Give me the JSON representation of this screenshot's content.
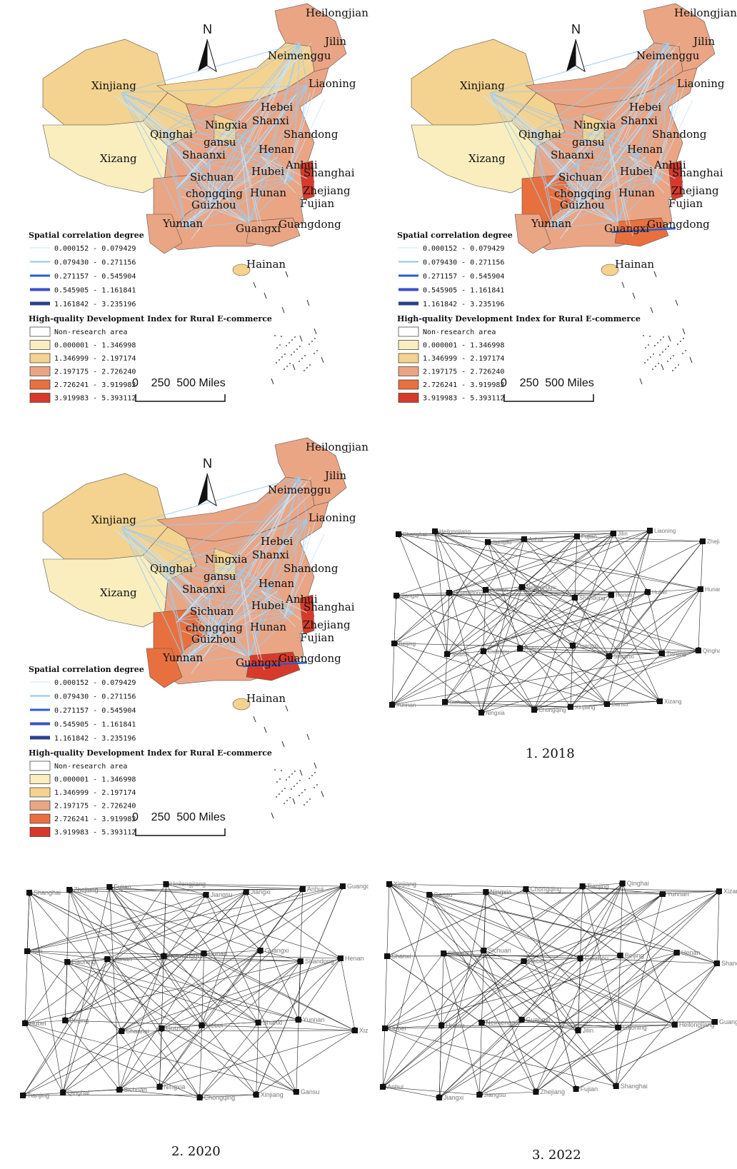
{
  "maps": [
    {
      "id": "map_top_left",
      "north_label": "N",
      "provinces": [
        "Heilongjiang",
        "Jilin",
        "Neimenggu",
        "Liaoning",
        "Xinjiang",
        "Hebei",
        "Shanxi",
        "Qinghai",
        "Ningxia",
        "Shandong",
        "gansu",
        "Xizang",
        "Shaanxi",
        "Henan",
        "Anhui",
        "Sichuan",
        "Hubei",
        "Shanghai",
        "Zhejiang",
        "chongqing",
        "Hunan",
        "Guizhou",
        "Fujian",
        "Yunnan",
        "Guangxi",
        "Guangdong",
        "Hainan"
      ],
      "fills": {
        "Xinjiang": "#f4d28f",
        "Xizang": "#faeebf",
        "Qinghai": "#f4d28f",
        "Neimenggu": "#f4d28f",
        "Heilongjiang": "#eaa585",
        "Sichuan": "#eaa585",
        "Yunnan": "#eaa585",
        "Zhejiang": "#d73a2a",
        "Guangdong": "#eaa585"
      }
    },
    {
      "id": "map_top_right",
      "north_label": "N",
      "provinces": [
        "Heilongjiang",
        "Jilin",
        "Neimenggu",
        "Liaoning",
        "Xinjiang",
        "Hebei",
        "Shanxi",
        "Qinghai",
        "Ningxia",
        "Shandong",
        "gansu",
        "Xizang",
        "Shaanxi",
        "Henan",
        "Anhui",
        "Sichuan",
        "Hubei",
        "Shanghai",
        "Zhejiang",
        "chongqing",
        "Hunan",
        "Guizhou",
        "Fujian",
        "Yunnan",
        "Guangxi",
        "Guangdong",
        "Hainan"
      ],
      "fills": {
        "Xinjiang": "#f4d28f",
        "Xizang": "#faeebf",
        "Qinghai": "#f4d28f",
        "Neimenggu": "#eaa585",
        "Heilongjiang": "#eaa585",
        "Sichuan": "#e8703f",
        "Yunnan": "#eaa585",
        "Zhejiang": "#d73a2a",
        "Guangdong": "#e8703f"
      }
    },
    {
      "id": "map_middle_left",
      "north_label": "N",
      "provinces": [
        "Heilongjiang",
        "Jilin",
        "Neimenggu",
        "Liaoning",
        "Xinjiang",
        "Hebei",
        "Shanxi",
        "Qinghai",
        "Ningxia",
        "Shandong",
        "gansu",
        "Xizang",
        "Shaanxi",
        "Henan",
        "Anhui",
        "Sichuan",
        "Hubei",
        "Shanghai",
        "Zhejiang",
        "chongqing",
        "Hunan",
        "Guizhou",
        "Fujian",
        "Yunnan",
        "Guangxi",
        "Guangdong",
        "Hainan"
      ],
      "fills": {
        "Xinjiang": "#f4d28f",
        "Xizang": "#faeebf",
        "Qinghai": "#f4d28f",
        "Neimenggu": "#eaa585",
        "Heilongjiang": "#eaa585",
        "Sichuan": "#e8703f",
        "Yunnan": "#e8703f",
        "Zhejiang": "#d73a2a",
        "Guangdong": "#d73a2a"
      }
    }
  ],
  "legend": {
    "corr_title": "Spatial correlation degree",
    "corr_items": [
      "0.000152 - 0.079429",
      "0.079430 - 0.271156",
      "0.271157 - 0.545904",
      "0.545905 - 1.161841",
      "1.161842 - 3.235196"
    ],
    "corr_colors": [
      "#c9e3f5",
      "#8ec4ec",
      "#2a5bd6",
      "#3a4fc9",
      "#2b3f8f"
    ],
    "index_title": "High-quality Development Index for Rural E-commerce",
    "index_items": [
      "Non-research area",
      "0.000001 - 1.346998",
      "1.346999 - 2.197174",
      "2.197175 - 2.726240",
      "2.726241 - 3.919982",
      "3.919983 - 5.393112"
    ],
    "index_colors": [
      "#ffffff",
      "#faeebf",
      "#f4d28f",
      "#eaa585",
      "#e8703f",
      "#d73a2a"
    ],
    "scale_text": "0    250  500 Miles"
  },
  "networks": [
    {
      "caption": "1. 2018",
      "nodes": [
        "Shanghai",
        "Heilongjiang",
        "Jiangsu",
        "Anhui",
        "Fujian",
        "Jilin",
        "Liaoning",
        "Zhejiang",
        "Jiangxi",
        "Guangdong",
        "Hainan",
        "Neimenggu",
        "Shandong",
        "Henan",
        "Hubei",
        "Hunan",
        "Beijing",
        "Shanxi",
        "Guizhou",
        "Hebei",
        "Guangxi",
        "Shaanxi",
        "Tianjing",
        "Qinghai",
        "Yunnan",
        "Sichuan",
        "Ningxia",
        "Chongqing",
        "Xinjiang",
        "Gansu",
        "Xizang"
      ]
    },
    {
      "caption": "2. 2020",
      "nodes": [
        "Shanghai",
        "Zhejiang",
        "Fujian",
        "Heilongjiang",
        "Jiangsu",
        "Jiangxi",
        "Anhui",
        "Guangdong",
        "Jilin",
        "Liaoning",
        "Hainan",
        "Neimenggu",
        "Hunan",
        "Guangxi",
        "Shandong",
        "Henan",
        "Hubei",
        "Beijing",
        "Shaanxi",
        "Guizhou",
        "Hebei",
        "Shanxi",
        "Yunnan",
        "Xizang",
        "Tianjing",
        "Qinghai",
        "Sichuan",
        "Ningxia",
        "Chongqing",
        "Xinjiang",
        "Gansu"
      ]
    },
    {
      "caption": "3. 2022",
      "nodes": [
        "Xinjiang",
        "Gansu",
        "Ningxia",
        "Chongqing",
        "Tianjing",
        "Qinghai",
        "Yunnan",
        "Xizang",
        "Shanxi",
        "Shaanxi",
        "Sichuan",
        "Hebei",
        "Guizhou",
        "Beijing",
        "Henan",
        "Shandong",
        "Hubei",
        "Hunan",
        "Neimenggu",
        "Guangxi",
        "Jilin",
        "Liaoning",
        "Heilongjiang",
        "Guangdong",
        "Anhui",
        "Jiangxi",
        "Jiangsu",
        "Zhejiang",
        "Fujian",
        "Shanghai"
      ]
    }
  ]
}
